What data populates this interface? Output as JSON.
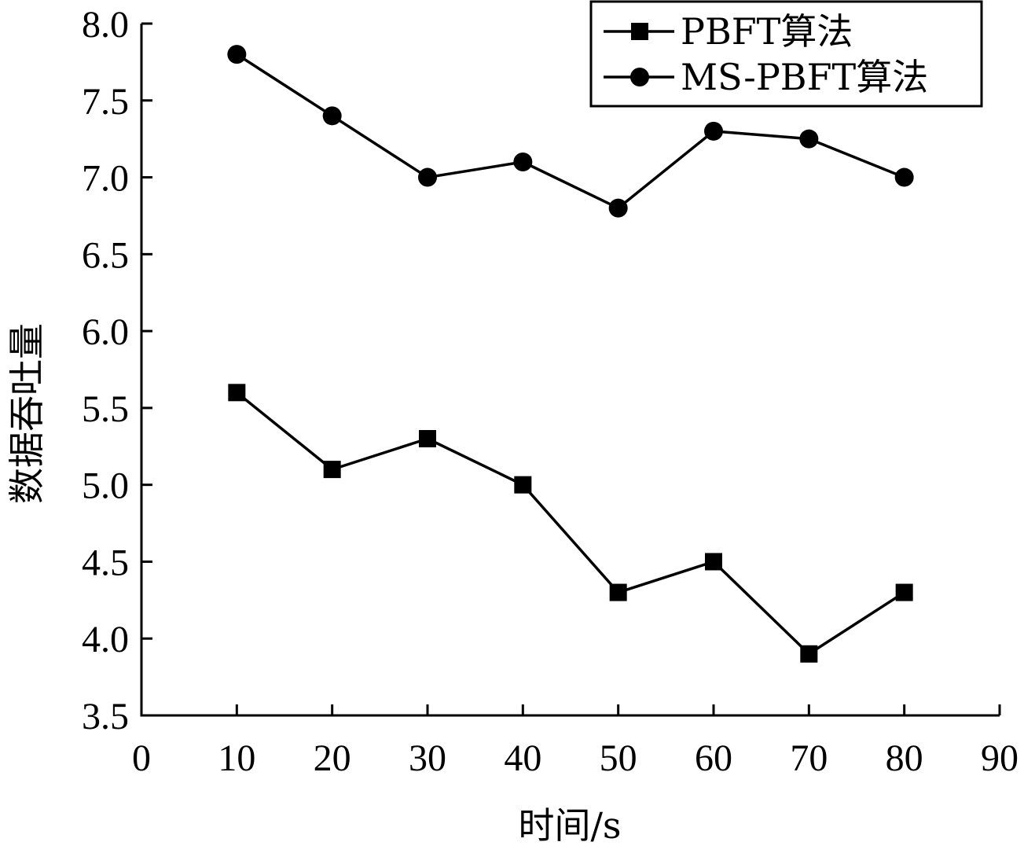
{
  "chart_data": {
    "type": "line",
    "title": "",
    "xlabel": "时间/s",
    "ylabel": "数据吞吐量",
    "xlim": [
      0,
      90
    ],
    "ylim": [
      3.5,
      8.0
    ],
    "x_ticks": [
      "0",
      "10",
      "20",
      "30",
      "40",
      "50",
      "60",
      "70",
      "80",
      "90"
    ],
    "y_ticks": [
      "3.5",
      "4.0",
      "4.5",
      "5.0",
      "5.5",
      "6.0",
      "6.5",
      "7.0",
      "7.5",
      "8.0"
    ],
    "x": [
      10,
      20,
      30,
      40,
      50,
      60,
      70,
      80
    ],
    "series": [
      {
        "name": "PBFT算法",
        "marker": "square",
        "values": [
          5.6,
          5.1,
          5.3,
          5.0,
          4.3,
          4.5,
          3.9,
          4.3
        ]
      },
      {
        "name": "MS-PBFT算法",
        "marker": "circle",
        "values": [
          7.8,
          7.4,
          7.0,
          7.1,
          6.8,
          7.3,
          7.25,
          7.0
        ]
      }
    ],
    "grid": false,
    "legend_position": "top-right",
    "line_color": "#000000"
  }
}
